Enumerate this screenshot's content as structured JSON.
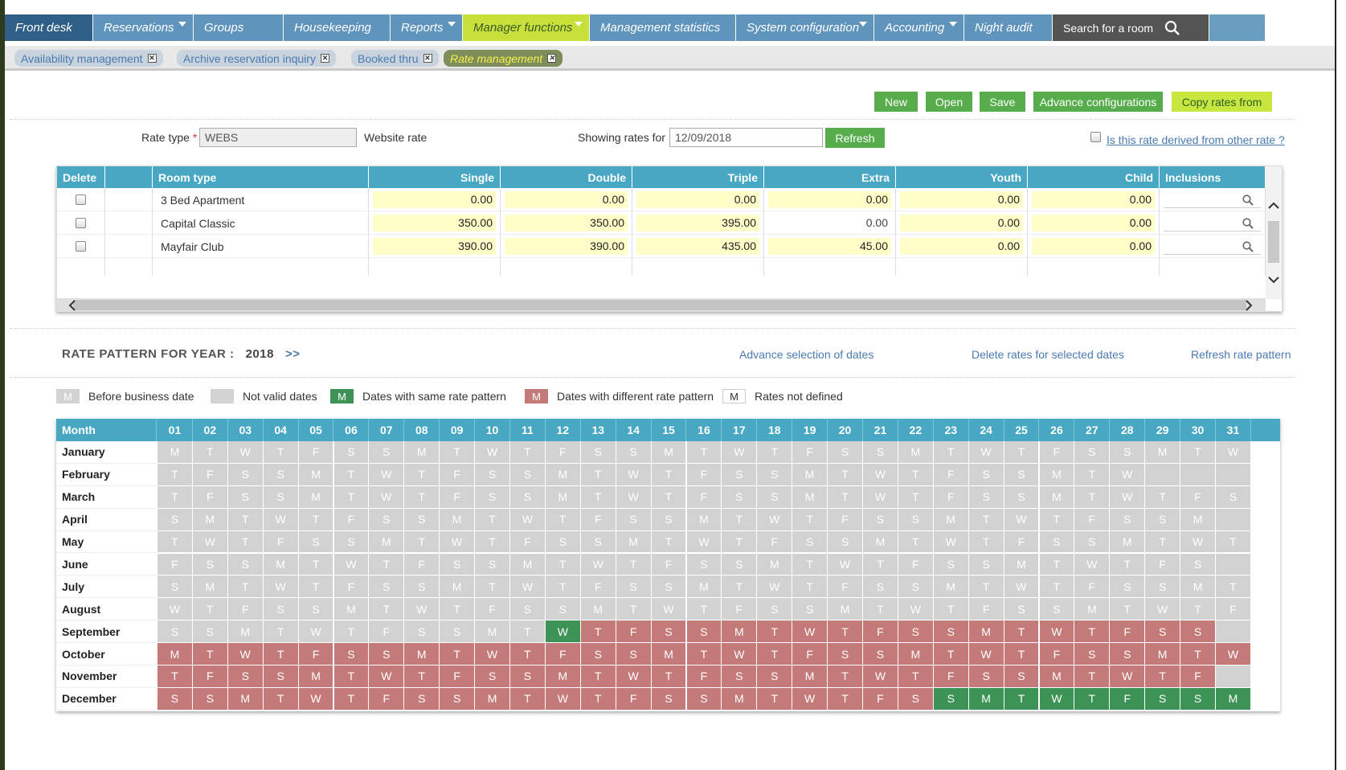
{
  "topnav": {
    "items": [
      {
        "label": "Front desk",
        "dropdown": false
      },
      {
        "label": "Reservations",
        "dropdown": true
      },
      {
        "label": "Groups",
        "dropdown": false
      },
      {
        "label": "Housekeeping",
        "dropdown": false
      },
      {
        "label": "Reports",
        "dropdown": true
      },
      {
        "label": "Manager functions",
        "dropdown": true,
        "highlighted": true
      },
      {
        "label": "Management statistics",
        "dropdown": false
      },
      {
        "label": "System configuration",
        "dropdown": true
      },
      {
        "label": "Accounting",
        "dropdown": true
      },
      {
        "label": "Night audit",
        "dropdown": false
      }
    ],
    "search_label": "Search for a room"
  },
  "subtabs": [
    {
      "label": "Availability management"
    },
    {
      "label": "Archive reservation inquiry"
    },
    {
      "label": "Booked thru"
    },
    {
      "label": "Rate management",
      "active": true
    }
  ],
  "toolbar": {
    "new": "New",
    "open": "Open",
    "save": "Save",
    "advance": "Advance configurations",
    "copy": "Copy rates from"
  },
  "form": {
    "rate_type_label": "Rate type",
    "required_mark": "*",
    "rate_type_value": "WEBS",
    "rate_type_desc": "Website rate",
    "showing_label": "Showing rates for",
    "showing_value": "12/09/2018",
    "refresh": "Refresh",
    "derived_link": "Is this rate derived from other rate ?"
  },
  "rates_table": {
    "headers": [
      "Delete",
      "",
      "Room type",
      "Single",
      "Double",
      "Triple",
      "Extra",
      "Youth",
      "Child",
      "Inclusions"
    ],
    "rows": [
      {
        "room": "3 Bed Apartment",
        "values": [
          "0.00",
          "0.00",
          "0.00",
          "0.00",
          "0.00",
          "0.00"
        ]
      },
      {
        "room": "Capital Classic",
        "values": [
          "350.00",
          "350.00",
          "395.00",
          "0.00",
          "0.00",
          "0.00"
        ]
      },
      {
        "room": "Mayfair Club",
        "values": [
          "390.00",
          "390.00",
          "435.00",
          "45.00",
          "0.00",
          "0.00"
        ]
      }
    ]
  },
  "pattern": {
    "title": "RATE PATTERN FOR YEAR :",
    "year": "2018",
    "next": ">>",
    "advance_link": "Advance selection of dates",
    "delete_link": "Delete rates for selected dates",
    "refresh_link": "Refresh rate pattern"
  },
  "legend": [
    {
      "swatch": "M",
      "label": "Before business date",
      "color": "#d2d2d2"
    },
    {
      "swatch": "",
      "label": "Not valid dates",
      "color": "#d2d2d2"
    },
    {
      "swatch": "M",
      "label": "Dates with same rate pattern",
      "color": "#3d9356"
    },
    {
      "swatch": "M",
      "label": "Dates with different rate pattern",
      "color": "#c57a7a"
    },
    {
      "swatch": "M",
      "label": "Rates not defined",
      "color": "#ffffff"
    }
  ],
  "calendar": {
    "month_header": "Month",
    "days": [
      "01",
      "02",
      "03",
      "04",
      "05",
      "06",
      "07",
      "08",
      "09",
      "10",
      "11",
      "12",
      "13",
      "14",
      "15",
      "16",
      "17",
      "18",
      "19",
      "20",
      "21",
      "22",
      "23",
      "24",
      "25",
      "26",
      "27",
      "28",
      "29",
      "30",
      "31"
    ],
    "months": [
      {
        "name": "January",
        "letters": "MTWTFSSMTWTFSSMTWTFSSMTWTFSSMTW",
        "status": "ggggggggggggggggggggggggggggggg"
      },
      {
        "name": "February",
        "letters": "TFSSMTWTFSSMTWTFSSMTWTFSSMTW",
        "status": "gggggggggggggggggggggggggggg"
      },
      {
        "name": "March",
        "letters": "TFSSMTWTFSSMTWTFSSMTWTFSSMTWTFS",
        "status": "ggggggggggggggggggggggggggggggg"
      },
      {
        "name": "April",
        "letters": "SMTWTFSSMTWTFSSMTWTFSSMTWTFSSM",
        "status": "gggggggggggggggggggggggggggggg"
      },
      {
        "name": "May",
        "letters": "TWTFSSMTWTFSSMTWTFSSMTWTFSSMTWT",
        "status": "ggggggggggggggggggggggggggggggg"
      },
      {
        "name": "June",
        "letters": "FSSMTWTFSSMTWTFSSMTWTFSSMTWTFS",
        "status": "gggggggggggggggggggggggggggggg"
      },
      {
        "name": "July",
        "letters": "SMTWTFSSMTWTFSSMTWTFSSMTWTFSSMT",
        "status": "ggggggggggggggggggggggggggggggg"
      },
      {
        "name": "August",
        "letters": "WTFSSMTWTFSSMTWTFSSMTWTFSSMTWTF",
        "status": "ggggggggggggggggggggggggggggggg"
      },
      {
        "name": "September",
        "letters": "SSMTWTFSSMTWTFSSMTWTFSSMTWTFSS",
        "status": "gggggggggggGrrrrrrrrrrrrrrrrrrr"
      },
      {
        "name": "October",
        "letters": "MTWTFSSMTWTFSSMTWTFSSMTWTFSSMTW",
        "status": "rrrrrrrrrrrrrrrrrrrrrrrrrrrrrrr"
      },
      {
        "name": "November",
        "letters": "TFSSMTWTFSSMTWTFSSMTWTFSSMTWTF",
        "status": "rrrrrrrrrrrrrrrrrrrrrrrrrrrrrr"
      },
      {
        "name": "December",
        "letters": "SSMTWTFSSMTWTFSSMTWTFSSMTWTFSSM",
        "status": "rrrrrrrrrrrrrrrrrrrrrrGGGGGGGGG"
      }
    ]
  },
  "colors": {
    "header_blue": "#48a7c3",
    "nav_blue": "#5f94bd",
    "green_button": "#57ad4c",
    "past_gray": "#d2d2d2",
    "different_red": "#c57a7a",
    "same_green": "#3d9356"
  }
}
